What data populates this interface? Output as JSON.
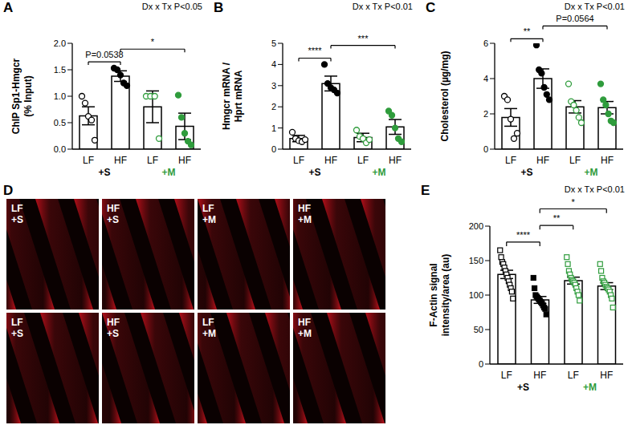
{
  "chart_data": [
    {
      "type": "bar",
      "panel_label": "A",
      "annotation": "Dx x Tx P<0.05",
      "ylabel": [
        "ChIP Sp1-Hmgcr",
        "(% Input)"
      ],
      "categories": [
        "LF",
        "HF",
        "LF",
        "HF"
      ],
      "groups": [
        {
          "label": "+S",
          "color": "#000000",
          "from": 0,
          "to": 1
        },
        {
          "label": "+M",
          "color": "#2f9c3c",
          "from": 2,
          "to": 3
        }
      ],
      "color": "#ffffff",
      "values": [
        0.63,
        1.38,
        0.8,
        0.43
      ],
      "errors": [
        0.17,
        0.1,
        0.3,
        0.25
      ],
      "points": [
        {
          "color": "#000000",
          "marker": "open_circle",
          "values": [
            1.0,
            0.87,
            0.62,
            0.55,
            0.17
          ]
        },
        {
          "color": "#000000",
          "marker": "circle",
          "values": [
            1.53,
            1.5,
            1.4,
            1.25,
            1.2
          ]
        },
        {
          "color": "#2f9c3c",
          "marker": "open_circle",
          "values": [
            1.0,
            1.0,
            1.0,
            0.2
          ]
        },
        {
          "color": "#2f9c3c",
          "marker": "circle",
          "values": [
            1.02,
            0.6,
            0.3,
            0.15,
            0.08
          ]
        }
      ],
      "comparisons": [
        {
          "from": 0,
          "to": 1,
          "label": "P=0.0538"
        },
        {
          "from": 1,
          "to": 3,
          "label": "*"
        }
      ],
      "ylim": [
        0,
        2
      ],
      "yticks": [
        {
          "value": 0,
          "label": "0.0"
        },
        {
          "value": 0.5,
          "label": "0.5"
        },
        {
          "value": 1,
          "label": "1.0"
        },
        {
          "value": 1.5,
          "label": "1.5"
        },
        {
          "value": 2,
          "label": "2.0"
        }
      ],
      "grid": false
    },
    {
      "type": "bar",
      "panel_label": "B",
      "annotation": "Dx x Tx P<0.01",
      "ylabel": [
        "Hmgcr mRNA /",
        "Hprt mRNA"
      ],
      "categories": [
        "LF",
        "HF",
        "LF",
        "HF"
      ],
      "groups": [
        {
          "label": "+S",
          "color": "#000000",
          "from": 0,
          "to": 1
        },
        {
          "label": "+M",
          "color": "#2f9c3c",
          "from": 2,
          "to": 3
        }
      ],
      "color": "#ffffff",
      "values": [
        0.5,
        3.1,
        0.55,
        1.05
      ],
      "errors": [
        0.15,
        0.35,
        0.2,
        0.35
      ],
      "points": [
        {
          "color": "#000000",
          "marker": "open_circle",
          "values": [
            0.8,
            0.5,
            0.4,
            0.35,
            0.45
          ]
        },
        {
          "color": "#000000",
          "marker": "circle",
          "values": [
            4.0,
            3.1,
            2.9,
            2.8,
            2.65
          ]
        },
        {
          "color": "#2f9c3c",
          "marker": "open_circle",
          "values": [
            0.9,
            0.6,
            0.5,
            0.3,
            0.45
          ]
        },
        {
          "color": "#2f9c3c",
          "marker": "circle",
          "values": [
            1.8,
            1.6,
            1.0,
            0.5,
            0.35
          ]
        }
      ],
      "comparisons": [
        {
          "from": 0,
          "to": 1,
          "label": "****"
        },
        {
          "from": 1,
          "to": 3,
          "label": "***"
        }
      ],
      "ylim": [
        0,
        5
      ],
      "yticks": [
        0,
        1,
        2,
        3,
        4,
        5
      ],
      "grid": false
    },
    {
      "type": "bar",
      "panel_label": "C",
      "annotation": "Dx x Tx P<0.01",
      "ylabel": [
        "Cholesterol (µg/mg)"
      ],
      "categories": [
        "LF",
        "HF",
        "LF",
        "HF"
      ],
      "groups": [
        {
          "label": "+S",
          "color": "#000000",
          "from": 0,
          "to": 1
        },
        {
          "label": "+M",
          "color": "#2f9c3c",
          "from": 2,
          "to": 3
        }
      ],
      "color": "#ffffff",
      "values": [
        1.8,
        4.0,
        2.4,
        2.35
      ],
      "errors": [
        0.5,
        0.55,
        0.35,
        0.35
      ],
      "points": [
        {
          "color": "#000000",
          "marker": "open_circle",
          "values": [
            3.0,
            2.8,
            1.7,
            0.6,
            0.9
          ]
        },
        {
          "color": "#000000",
          "marker": "circle",
          "values": [
            5.9,
            4.5,
            4.3,
            3.5,
            3.1,
            2.8
          ]
        },
        {
          "color": "#2f9c3c",
          "marker": "open_circle",
          "values": [
            3.7,
            2.7,
            2.5,
            2.2,
            1.8,
            1.5
          ]
        },
        {
          "color": "#2f9c3c",
          "marker": "circle",
          "values": [
            3.7,
            2.8,
            2.5,
            2.0,
            1.6,
            1.5
          ]
        }
      ],
      "comparisons": [
        {
          "from": 0,
          "to": 1,
          "label": "**"
        },
        {
          "from": 1,
          "to": 3,
          "label": "P=0.0564"
        }
      ],
      "ylim": [
        0,
        6
      ],
      "yticks": [
        0,
        2,
        4,
        6
      ],
      "grid": false
    },
    {
      "type": "image_grid",
      "panel_label": "D",
      "labels": [
        [
          "LF",
          "+S"
        ],
        [
          "HF",
          "+S"
        ],
        [
          "LF",
          "+M"
        ],
        [
          "HF",
          "+M"
        ],
        [
          "LF",
          "+S"
        ],
        [
          "HF",
          "+S"
        ],
        [
          "LF",
          "+M"
        ],
        [
          "HF",
          "+M"
        ]
      ]
    },
    {
      "type": "bar",
      "panel_label": "E",
      "annotation": "Dx x Tx P<0.01",
      "ylabel": [
        "F-Actin signal",
        "intensity/area (au)"
      ],
      "categories": [
        "LF",
        "HF",
        "LF",
        "HF"
      ],
      "groups": [
        {
          "label": "+S",
          "color": "#000000",
          "from": 0,
          "to": 1
        },
        {
          "label": "+M",
          "color": "#2f9c3c",
          "from": 2,
          "to": 3
        }
      ],
      "color": "#ffffff",
      "values": [
        130,
        93,
        121,
        113
      ],
      "errors": [
        6,
        5,
        5,
        5
      ],
      "points": [
        {
          "color": "#000000",
          "marker": "open_square",
          "values": [
            165,
            155,
            148,
            145,
            140,
            135,
            130,
            125,
            120,
            115,
            110,
            105,
            95
          ]
        },
        {
          "color": "#000000",
          "marker": "square",
          "values": [
            125,
            110,
            100,
            98,
            96,
            94,
            92,
            90,
            88,
            85,
            82,
            80,
            72
          ]
        },
        {
          "color": "#2f9c3c",
          "marker": "open_square",
          "values": [
            155,
            145,
            135,
            130,
            125,
            122,
            120,
            118,
            115,
            110,
            105,
            100,
            92
          ]
        },
        {
          "color": "#2f9c3c",
          "marker": "open_square",
          "values": [
            145,
            135,
            125,
            120,
            118,
            115,
            112,
            110,
            108,
            105,
            100,
            95,
            82
          ]
        }
      ],
      "comparisons": [
        {
          "from": 0,
          "to": 1,
          "label": "****"
        },
        {
          "from": 1,
          "to": 2,
          "label": "**"
        },
        {
          "from": 1,
          "to": 3,
          "label": "*"
        }
      ],
      "ylim": [
        0,
        200
      ],
      "yticks": [
        0,
        50,
        100,
        150,
        200
      ],
      "grid": false
    }
  ]
}
